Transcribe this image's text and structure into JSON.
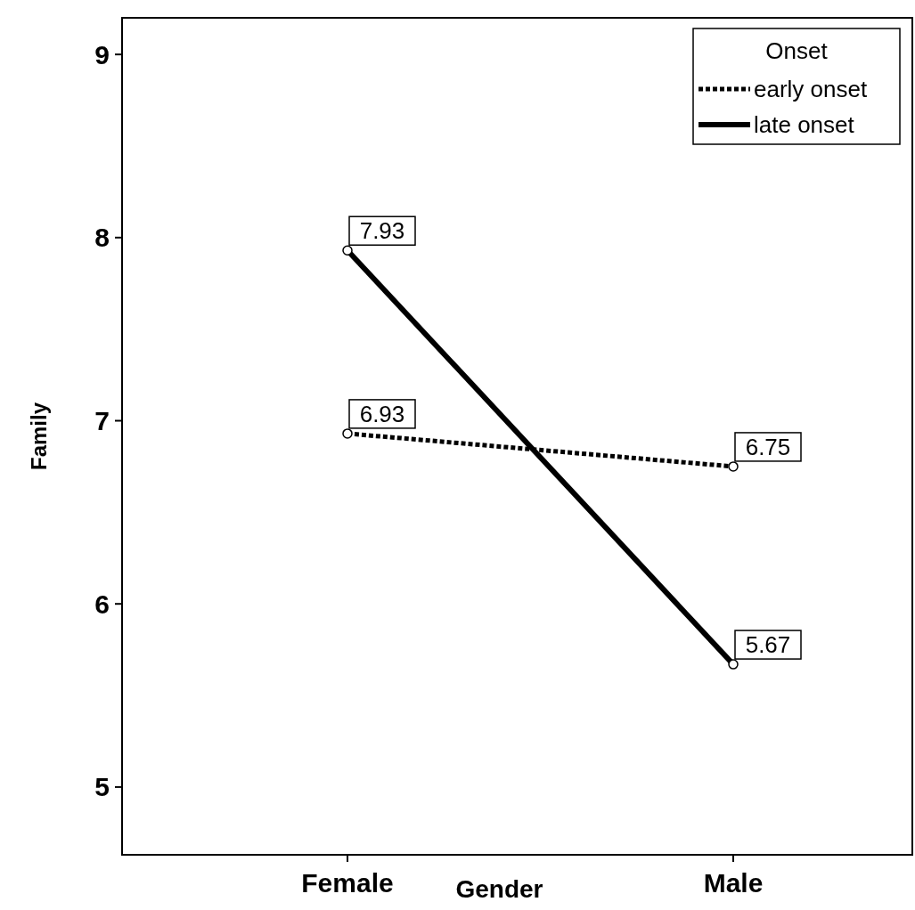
{
  "chart_data": {
    "type": "line",
    "xlabel": "Gender",
    "ylabel": "Family",
    "legend_title": "Onset",
    "categories": [
      "Female",
      "Male"
    ],
    "series": [
      {
        "name": "early onset",
        "color": "#000000",
        "values": [
          6.93,
          6.75
        ],
        "line_style": "dotted"
      },
      {
        "name": "late onset",
        "color": "#000000",
        "values": [
          7.93,
          5.67
        ],
        "line_style": "solid"
      }
    ],
    "ylim": [
      4.63,
      9.2
    ],
    "yticks": [
      5,
      6,
      7,
      8,
      9
    ],
    "marker": "circle",
    "data_labels": true,
    "legend": "top right"
  }
}
